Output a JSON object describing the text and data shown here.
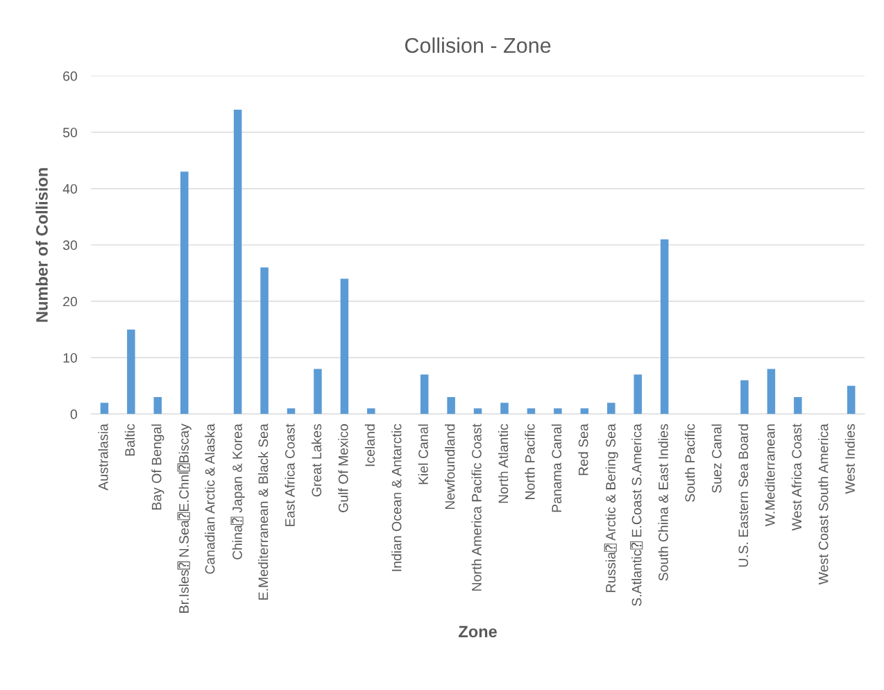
{
  "chart_data": {
    "type": "bar",
    "title": "Collision - Zone",
    "xlabel": "Zone",
    "ylabel": "Number of Collision",
    "categories": [
      "Australasia",
      "Baltic",
      "Bay Of Bengal",
      "Br.Isles⍰ N.Sea⍰E.Chnl⍰Biscay",
      "Canadian Arctic & Alaska",
      "China⍰ Japan & Korea",
      "E.Mediterranean & Black Sea",
      "East Africa Coast",
      "Great Lakes",
      "Gulf Of Mexico",
      "Iceland",
      "Indian Ocean & Antarctic",
      "Kiel Canal",
      "Newfoundland",
      "North America Pacific Coast",
      "North Atlantic",
      "North Pacific",
      "Panama Canal",
      "Red Sea",
      "Russia⍰ Arctic & Bering Sea",
      "S.Atlantic⍰ E.Coast S.America",
      "South China & East Indies",
      "South Pacific",
      "Suez Canal",
      "U.S. Eastern Sea Board",
      "W.Mediterranean",
      "West Africa Coast",
      "West Coast South America",
      "West Indies"
    ],
    "values": [
      2,
      15,
      3,
      43,
      0,
      54,
      26,
      1,
      8,
      24,
      1,
      0,
      7,
      3,
      1,
      2,
      1,
      1,
      1,
      2,
      7,
      31,
      0,
      0,
      6,
      8,
      3,
      0,
      5
    ],
    "color": "#5b9bd5",
    "ylim": [
      0,
      60
    ],
    "yticks": [
      0,
      10,
      20,
      30,
      40,
      50,
      60
    ],
    "grid": "y"
  }
}
